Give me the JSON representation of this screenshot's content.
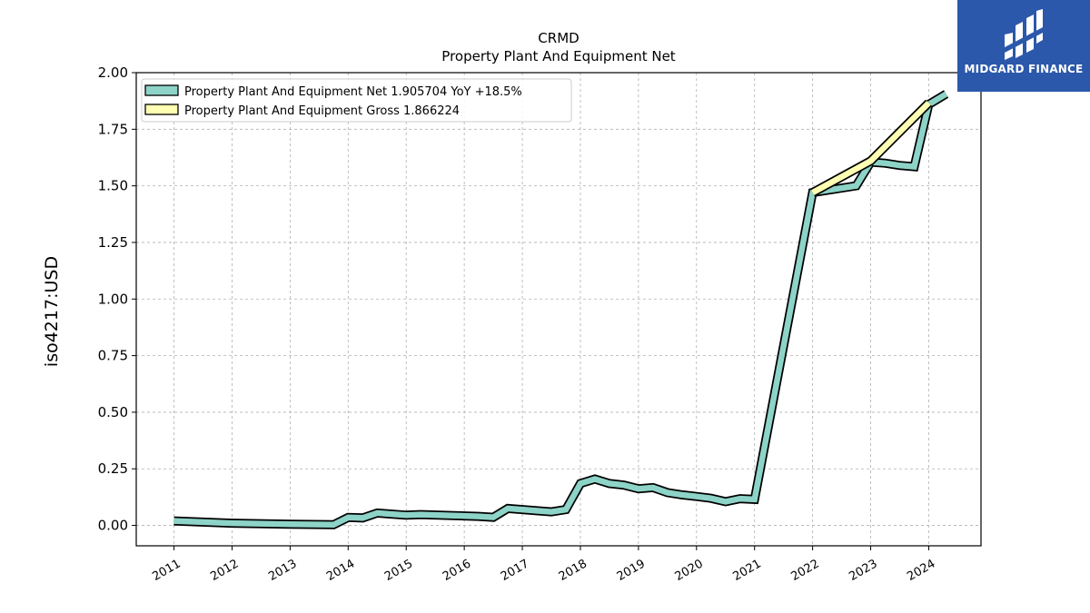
{
  "chart_data": {
    "type": "line",
    "title": "CRMD",
    "subtitle": "Property Plant And Equipment Net",
    "ylabel": "iso4217:USD",
    "xlabel": "",
    "ylim": [
      -0.09,
      2.0
    ],
    "xlim": [
      2010.35,
      2024.9
    ],
    "grid": true,
    "legend_position": "top-left",
    "y_ticks": [
      0.0,
      0.25,
      0.5,
      0.75,
      1.0,
      1.25,
      1.5,
      1.75,
      2.0
    ],
    "y_tick_labels": [
      "0.00",
      "0.25",
      "0.50",
      "0.75",
      "1.00",
      "1.25",
      "1.50",
      "1.75",
      "2.00"
    ],
    "x_ticks": [
      2011,
      2012,
      2013,
      2014,
      2015,
      2016,
      2017,
      2018,
      2019,
      2020,
      2021,
      2022,
      2023,
      2024
    ],
    "x_tick_labels": [
      "2011",
      "2012",
      "2013",
      "2014",
      "2015",
      "2016",
      "2017",
      "2018",
      "2019",
      "2020",
      "2021",
      "2022",
      "2023",
      "2024"
    ],
    "series": [
      {
        "name": "Property Plant And Equipment Net",
        "legend_label": "Property Plant And Equipment Net  1.905704 YoY +18.5%",
        "color": "#8dd3c7",
        "x": [
          2011.0,
          2012.0,
          2013.0,
          2013.75,
          2014.0,
          2014.25,
          2014.5,
          2014.75,
          2015.0,
          2015.25,
          2015.5,
          2015.75,
          2016.0,
          2016.25,
          2016.5,
          2016.75,
          2017.0,
          2017.25,
          2017.5,
          2017.75,
          2018.0,
          2018.25,
          2018.5,
          2018.75,
          2019.0,
          2019.25,
          2019.5,
          2019.75,
          2020.0,
          2020.25,
          2020.5,
          2020.75,
          2021.0,
          2022.0,
          2022.75,
          2023.0,
          2023.25,
          2023.5,
          2023.75,
          2024.0,
          2024.3
        ],
        "values": [
          0.02,
          0.01,
          0.005,
          0.003,
          0.035,
          0.033,
          0.055,
          0.05,
          0.045,
          0.048,
          0.046,
          0.044,
          0.042,
          0.04,
          0.036,
          0.075,
          0.07,
          0.065,
          0.06,
          0.07,
          0.185,
          0.205,
          0.185,
          0.178,
          0.162,
          0.167,
          0.145,
          0.135,
          0.128,
          0.12,
          0.105,
          0.118,
          0.115,
          1.47,
          1.5,
          1.605,
          1.6,
          1.59,
          1.585,
          1.86,
          1.905704
        ]
      },
      {
        "name": "Property Plant And Equipment Gross",
        "legend_label": "Property Plant And Equipment Gross  1.866224",
        "color": "#ffffb3",
        "x": [
          2022.0,
          2023.0,
          2024.0
        ],
        "values": [
          1.47,
          1.61,
          1.866224
        ]
      }
    ]
  },
  "logo": {
    "text": "MIDGARD FINANCE",
    "color": "#2b58aa"
  }
}
